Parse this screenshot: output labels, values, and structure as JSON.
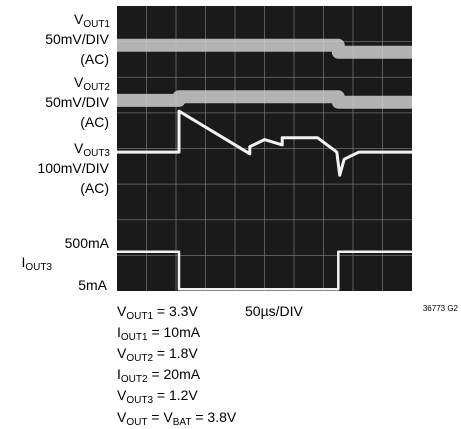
{
  "chart_data": {
    "type": "line",
    "title": "",
    "channels": [
      {
        "symbol": "V",
        "subscript": "OUT1",
        "scale": "50mV/DIV",
        "coupling": "(AC)"
      },
      {
        "symbol": "V",
        "subscript": "OUT2",
        "scale": "50mV/DIV",
        "coupling": "(AC)"
      },
      {
        "symbol": "V",
        "subscript": "OUT3",
        "scale": "100mV/DIV",
        "coupling": "(AC)"
      },
      {
        "symbol": "I",
        "subscript": "OUT3",
        "levels": [
          "500mA",
          "5mA"
        ]
      }
    ],
    "timebase": "50µs/DIV",
    "grid": {
      "horizontal_divisions": 8,
      "vertical_divisions": 8,
      "visible": true
    },
    "x_divisions": [
      0,
      1,
      2,
      3,
      4,
      5,
      6,
      7,
      8,
      9,
      10
    ],
    "series": [
      {
        "name": "VOUT1",
        "x": [
          0,
          2.1,
          2.1,
          7.5,
          7.5,
          10
        ],
        "y": [
          6.9,
          6.9,
          6.9,
          6.9,
          6.7,
          6.7
        ]
      },
      {
        "name": "VOUT2",
        "x": [
          0,
          2.1,
          2.1,
          7.5,
          7.5,
          10
        ],
        "y": [
          5.35,
          5.35,
          5.45,
          5.45,
          5.3,
          5.3
        ]
      },
      {
        "name": "VOUT3",
        "x": [
          0,
          2.1,
          2.1,
          4.5,
          4.5,
          5.0,
          5.6,
          5.6,
          6.8,
          7.45,
          7.55,
          7.7,
          8.2,
          10
        ],
        "y": [
          3.9,
          3.9,
          5.05,
          3.85,
          4.05,
          4.25,
          4.1,
          4.3,
          4.3,
          3.9,
          3.25,
          3.7,
          3.9,
          3.9
        ]
      },
      {
        "name": "IOUT3",
        "x": [
          0,
          2.1,
          2.1,
          7.5,
          7.5,
          10
        ],
        "y": [
          1.1,
          1.1,
          0.05,
          0.05,
          1.1,
          1.1
        ]
      }
    ],
    "conditions": [
      {
        "symbol": "V",
        "subscript": "OUT1",
        "value": " = 3.3V"
      },
      {
        "symbol": "I",
        "subscript": "OUT1",
        "value": " = 10mA"
      },
      {
        "symbol": "V",
        "subscript": "OUT2",
        "value": " = 1.8V"
      },
      {
        "symbol": "I",
        "subscript": "OUT2",
        "value": " = 20mA"
      },
      {
        "symbol": "V",
        "subscript": "OUT3",
        "value": " = 1.2V"
      }
    ],
    "last_condition": {
      "a": "V",
      "a_sub": "OUT",
      "mid": " = V",
      "b_sub": "BAT",
      "value": " = 3.8V"
    },
    "figure_id": "36773 G2"
  },
  "colors": {
    "screen": "#1a1a1a",
    "grid": "#6e6e6e",
    "trace": "#f2f2f2",
    "trace_band": "#cfcfcf"
  }
}
